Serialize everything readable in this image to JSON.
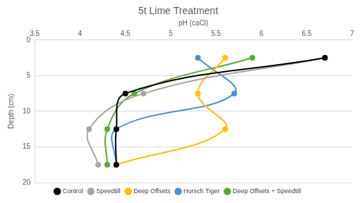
{
  "chart_data": {
    "type": "line",
    "title": "5t Lime Treatment",
    "x_label": "pH (caCl)",
    "y_label": "Depth (cm)",
    "y": [
      2.5,
      7.5,
      12.5,
      17.5
    ],
    "series": [
      {
        "name": "Control",
        "color": "#000000",
        "values": [
          6.7,
          4.5,
          4.4,
          4.4
        ]
      },
      {
        "name": "Speedtill",
        "color": "#a5a5a5",
        "values": [
          6.7,
          4.7,
          4.1,
          4.2
        ]
      },
      {
        "name": "Deep Offsets",
        "color": "#ffc000",
        "values": [
          5.6,
          5.3,
          5.6,
          4.4
        ]
      },
      {
        "name": "Horsch Tiger",
        "color": "#4a90d9",
        "values": [
          5.3,
          5.7,
          4.4,
          4.4
        ]
      },
      {
        "name": "Deep Offsets + Speedtill",
        "color": "#5aa832",
        "values": [
          5.9,
          4.6,
          4.3,
          4.3
        ]
      }
    ],
    "xlim": [
      3.5,
      7
    ],
    "xticks": [
      3.5,
      4,
      4.5,
      5,
      5.5,
      6,
      6.5,
      7
    ],
    "ylim": [
      0,
      20
    ],
    "yticks": [
      0,
      5,
      10,
      15,
      20
    ],
    "grid": true,
    "legend": "bottom",
    "marker": "circle",
    "line_style": "smooth"
  }
}
